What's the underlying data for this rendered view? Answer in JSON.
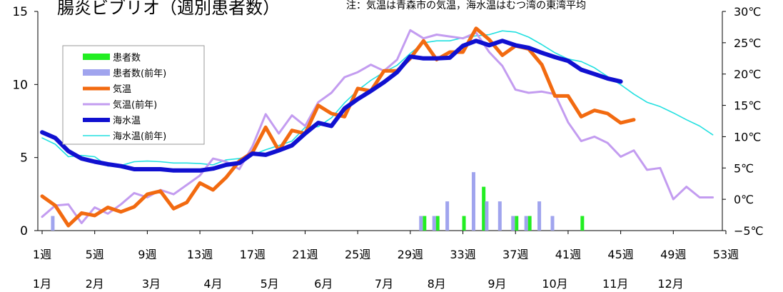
{
  "chart_data": {
    "type": "bar+line",
    "title": "腸炎ビブリオ（週別患者数）",
    "note": "注：気温は青森市の気温，海水温はむつ湾の東湾平均",
    "y_left": {
      "range": [
        0,
        15
      ],
      "ticks": [
        "0",
        "5",
        "10",
        "15"
      ]
    },
    "y_right": {
      "range": [
        -5,
        30
      ],
      "ticks": [
        "−5℃",
        "0℃",
        "5℃",
        "10℃",
        "15℃",
        "20℃",
        "25℃",
        "30℃"
      ]
    },
    "x_week_ticks": [
      {
        "week": 1,
        "label": "1週"
      },
      {
        "week": 5,
        "label": "5週"
      },
      {
        "week": 9,
        "label": "9週"
      },
      {
        "week": 13,
        "label": "13週"
      },
      {
        "week": 17,
        "label": "17週"
      },
      {
        "week": 21,
        "label": "21週"
      },
      {
        "week": 25,
        "label": "25週"
      },
      {
        "week": 29,
        "label": "29週"
      },
      {
        "week": 33,
        "label": "33週"
      },
      {
        "week": 37,
        "label": "37週"
      },
      {
        "week": 41,
        "label": "41週"
      },
      {
        "week": 45,
        "label": "45週"
      },
      {
        "week": 49,
        "label": "49週"
      },
      {
        "week": 53,
        "label": "53週"
      }
    ],
    "x_month_labels": [
      {
        "week": 1,
        "label": "1月"
      },
      {
        "week": 5,
        "label": "2月"
      },
      {
        "week": 9.3,
        "label": "3月"
      },
      {
        "week": 14,
        "label": "4月"
      },
      {
        "week": 18.3,
        "label": "5月"
      },
      {
        "week": 22.4,
        "label": "6月"
      },
      {
        "week": 27,
        "label": "7月"
      },
      {
        "week": 31,
        "label": "8月"
      },
      {
        "week": 35.6,
        "label": "9月"
      },
      {
        "week": 40,
        "label": "10月"
      },
      {
        "week": 44.6,
        "label": "11月"
      },
      {
        "week": 48.8,
        "label": "12月"
      }
    ],
    "legend": {
      "position": "upper-left"
    },
    "series": [
      {
        "name": "患者数",
        "kind": "bar",
        "axis": "left",
        "color": "#22ee22",
        "points": [
          [
            30,
            1
          ],
          [
            31,
            1
          ],
          [
            33,
            1
          ],
          [
            34.5,
            3
          ],
          [
            37,
            1
          ],
          [
            38,
            1
          ],
          [
            42,
            1
          ]
        ]
      },
      {
        "name": "患者数(前年)",
        "kind": "bar",
        "axis": "left",
        "color": "#a0a4ee",
        "points": [
          [
            2,
            1
          ],
          [
            30,
            1
          ],
          [
            31,
            1
          ],
          [
            32,
            2
          ],
          [
            34,
            4
          ],
          [
            35,
            2
          ],
          [
            36,
            2
          ],
          [
            37,
            1
          ],
          [
            38,
            1
          ],
          [
            39,
            2
          ],
          [
            40,
            1
          ]
        ]
      },
      {
        "name": "気温",
        "kind": "line",
        "axis": "right",
        "color": "#f26a10",
        "points": [
          [
            1,
            0.5
          ],
          [
            2,
            -1
          ],
          [
            3,
            -4.2
          ],
          [
            4,
            -2.2
          ],
          [
            5,
            -2.6
          ],
          [
            6,
            -1.3
          ],
          [
            7,
            -2
          ],
          [
            8,
            -1.2
          ],
          [
            9,
            0.8
          ],
          [
            10,
            1.3
          ],
          [
            11,
            -1.5
          ],
          [
            12,
            -0.5
          ],
          [
            13,
            2.6
          ],
          [
            14,
            1.5
          ],
          [
            15,
            3.5
          ],
          [
            16,
            6.1
          ],
          [
            17,
            7.5
          ],
          [
            18,
            11.5
          ],
          [
            19,
            7.8
          ],
          [
            20,
            11
          ],
          [
            21,
            10.5
          ],
          [
            22,
            15
          ],
          [
            23,
            13.7
          ],
          [
            24,
            13.2
          ],
          [
            25,
            17.7
          ],
          [
            26,
            17.3
          ],
          [
            27,
            20.5
          ],
          [
            28,
            20.5
          ],
          [
            29,
            22.5
          ],
          [
            30,
            25.3
          ],
          [
            31,
            22.3
          ],
          [
            32,
            23.5
          ],
          [
            33,
            23.5
          ],
          [
            34,
            27.3
          ],
          [
            35,
            25.5
          ],
          [
            36,
            23
          ],
          [
            37,
            24.5
          ],
          [
            38,
            24
          ],
          [
            39,
            21.5
          ],
          [
            40,
            16.5
          ],
          [
            41,
            16.5
          ],
          [
            42,
            13.2
          ],
          [
            43,
            14.2
          ],
          [
            44,
            13.7
          ],
          [
            45,
            12.2
          ],
          [
            46,
            12.7
          ]
        ]
      },
      {
        "name": "気温(前年)",
        "kind": "line",
        "axis": "right",
        "color": "#c39cf0",
        "points": [
          [
            1,
            -2.8
          ],
          [
            2,
            -1
          ],
          [
            3,
            -0.8
          ],
          [
            4,
            -3.8
          ],
          [
            5,
            -1.3
          ],
          [
            6,
            -2.3
          ],
          [
            7,
            -0.8
          ],
          [
            8,
            1
          ],
          [
            9,
            0.3
          ],
          [
            10,
            1.5
          ],
          [
            11,
            0.8
          ],
          [
            12,
            2.3
          ],
          [
            13,
            3.8
          ],
          [
            14,
            6.5
          ],
          [
            15,
            6
          ],
          [
            16,
            4.8
          ],
          [
            17,
            8.5
          ],
          [
            18,
            13.6
          ],
          [
            19,
            10.5
          ],
          [
            20,
            13.4
          ],
          [
            21,
            11.7
          ],
          [
            22,
            15.5
          ],
          [
            23,
            17
          ],
          [
            24,
            19.5
          ],
          [
            25,
            20.3
          ],
          [
            26,
            21.5
          ],
          [
            27,
            20.5
          ],
          [
            28,
            22.3
          ],
          [
            29,
            27
          ],
          [
            30,
            25.7
          ],
          [
            31,
            26.3
          ],
          [
            32,
            26
          ],
          [
            33,
            25.7
          ],
          [
            34,
            26.6
          ],
          [
            35,
            23.5
          ],
          [
            36,
            21.3
          ],
          [
            37,
            17.5
          ],
          [
            38,
            17
          ],
          [
            39,
            17.2
          ],
          [
            40,
            16.8
          ],
          [
            41,
            12.3
          ],
          [
            42,
            9.3
          ],
          [
            43,
            10
          ],
          [
            44,
            9
          ],
          [
            45,
            6.8
          ],
          [
            46,
            7.8
          ],
          [
            47,
            4.7
          ],
          [
            48,
            5
          ],
          [
            49,
            0
          ],
          [
            50,
            2
          ],
          [
            51,
            0.3
          ],
          [
            52,
            0.3
          ]
        ]
      },
      {
        "name": "海水温",
        "kind": "line",
        "axis": "right",
        "color": "#1010d0",
        "points": [
          [
            1,
            10.7
          ],
          [
            2,
            9.8
          ],
          [
            3,
            7.7
          ],
          [
            4,
            6.5
          ],
          [
            5,
            6
          ],
          [
            6,
            5.6
          ],
          [
            7,
            5.3
          ],
          [
            8,
            4.8
          ],
          [
            9,
            4.8
          ],
          [
            10,
            4.8
          ],
          [
            11,
            4.6
          ],
          [
            12,
            4.6
          ],
          [
            13,
            4.6
          ],
          [
            14,
            4.9
          ],
          [
            15,
            5.5
          ],
          [
            16,
            5.8
          ],
          [
            17,
            7.3
          ],
          [
            18,
            7.1
          ],
          [
            19,
            7.8
          ],
          [
            20,
            8.6
          ],
          [
            21,
            10.5
          ],
          [
            22,
            12.2
          ],
          [
            23,
            11.7
          ],
          [
            24,
            14.5
          ],
          [
            25,
            16
          ],
          [
            26,
            17.3
          ],
          [
            27,
            18.7
          ],
          [
            28,
            20.3
          ],
          [
            29,
            22.8
          ],
          [
            30,
            22.5
          ],
          [
            31,
            22.5
          ],
          [
            32,
            22.6
          ],
          [
            33,
            24.5
          ],
          [
            34,
            25.3
          ],
          [
            35,
            24.6
          ],
          [
            36,
            25.3
          ],
          [
            37,
            24.6
          ],
          [
            38,
            24.2
          ],
          [
            39,
            23.4
          ],
          [
            40,
            22.7
          ],
          [
            41,
            22.1
          ],
          [
            42,
            20.7
          ],
          [
            43,
            20
          ],
          [
            44,
            19.3
          ],
          [
            45,
            18.8
          ]
        ]
      },
      {
        "name": "海水温(前年)",
        "kind": "line",
        "axis": "right",
        "color": "#22e0e0",
        "points": [
          [
            1,
            9.8
          ],
          [
            2,
            8.8
          ],
          [
            3,
            6.8
          ],
          [
            4,
            7
          ],
          [
            5,
            6.8
          ],
          [
            6,
            5.3
          ],
          [
            7,
            5.4
          ],
          [
            8,
            6
          ],
          [
            9,
            6.1
          ],
          [
            10,
            6
          ],
          [
            11,
            5.8
          ],
          [
            12,
            5.8
          ],
          [
            13,
            5.7
          ],
          [
            14,
            5.5
          ],
          [
            15,
            6.3
          ],
          [
            16,
            6.5
          ],
          [
            17,
            7.1
          ],
          [
            18,
            7.9
          ],
          [
            19,
            8.6
          ],
          [
            20,
            9.3
          ],
          [
            21,
            11.5
          ],
          [
            22,
            11.6
          ],
          [
            23,
            13
          ],
          [
            24,
            15.4
          ],
          [
            25,
            17.4
          ],
          [
            26,
            19
          ],
          [
            27,
            20.3
          ],
          [
            28,
            21.4
          ],
          [
            29,
            23.3
          ],
          [
            30,
            25
          ],
          [
            31,
            25.3
          ],
          [
            32,
            25.3
          ],
          [
            33,
            25.8
          ],
          [
            34,
            26.1
          ],
          [
            35,
            26.3
          ],
          [
            36,
            26.9
          ],
          [
            37,
            26.7
          ],
          [
            38,
            25.9
          ],
          [
            39,
            24.7
          ],
          [
            40,
            23.4
          ],
          [
            41,
            22.4
          ],
          [
            42,
            22
          ],
          [
            43,
            21
          ],
          [
            44,
            19.6
          ],
          [
            45,
            18.3
          ],
          [
            46,
            16.8
          ],
          [
            47,
            15.5
          ],
          [
            48,
            14.8
          ],
          [
            49,
            13.8
          ],
          [
            50,
            12.7
          ],
          [
            51,
            11.7
          ],
          [
            52,
            10.3
          ]
        ]
      }
    ]
  }
}
